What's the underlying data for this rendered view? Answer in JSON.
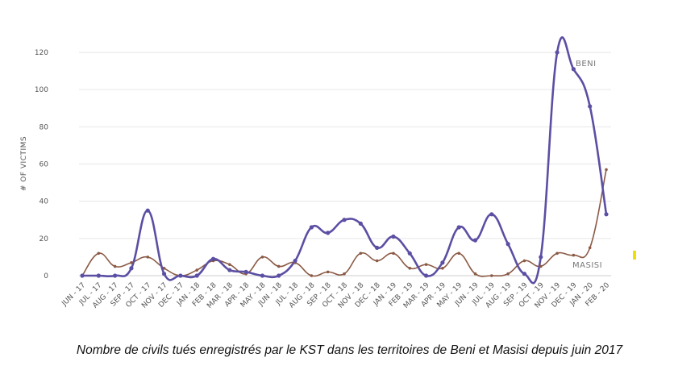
{
  "chart_data": {
    "type": "line",
    "ylabel": "# OF VICTIMS",
    "ylim": [
      0,
      120
    ],
    "yticks": [
      0,
      20,
      40,
      60,
      80,
      100,
      120
    ],
    "grid": true,
    "categories": [
      "JUN - 17",
      "JUL - 17",
      "AUG - 17",
      "SEP - 17",
      "OCT - 17",
      "NOV - 17",
      "DEC - 17",
      "JAN - 18",
      "FEB - 18",
      "MAR - 18",
      "APR - 18",
      "MAY - 18",
      "JUN - 18",
      "JUL - 18",
      "AUG - 18",
      "SEP - 18",
      "OCT - 18",
      "NOV - 18",
      "DEC - 18",
      "JAN - 19",
      "FEB - 19",
      "MAR - 19",
      "APR - 19",
      "MAY - 19",
      "JUN - 19",
      "JUL - 19",
      "AUG - 19",
      "SEP - 19",
      "OCT - 19",
      "NOV - 19",
      "DEC - 19",
      "JAN - 20",
      "FEB - 20"
    ],
    "series": [
      {
        "name": "BENI",
        "color": "#5b4fa3",
        "values": [
          0,
          0,
          0,
          4,
          35,
          1,
          0,
          0,
          9,
          3,
          2,
          0,
          0,
          8,
          26,
          23,
          30,
          28,
          15,
          21,
          12,
          0,
          7,
          26,
          19,
          33,
          17,
          1,
          10,
          120,
          111,
          91,
          33
        ]
      },
      {
        "name": "MASISI",
        "color": "#8b5a45",
        "values": [
          0,
          12,
          5,
          7,
          10,
          4,
          0,
          3,
          8,
          6,
          1,
          10,
          5,
          7,
          0,
          2,
          1,
          12,
          8,
          12,
          4,
          6,
          4,
          12,
          1,
          0,
          1,
          8,
          5,
          12,
          11,
          15,
          57
        ]
      }
    ]
  },
  "caption": "Nombre de civils tués enregistrés par le KST dans les territoires de Beni et Masisi depuis juin 2017"
}
